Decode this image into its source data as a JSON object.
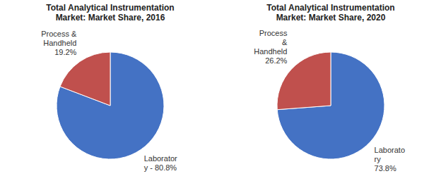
{
  "chart_data": [
    {
      "type": "pie",
      "title": "Total Analytical Instrumentation\nMarket: Market Share, 2016",
      "categories": [
        "Laborator\ny - 80.8%",
        "Process &\nHandheld\n19.2%"
      ],
      "values": [
        80.8,
        19.2
      ],
      "colors": [
        "#4472C4",
        "#C0504D"
      ]
    },
    {
      "type": "pie",
      "title": "Total Analytical Instrumentation\nMarket: Market Share, 2020",
      "categories": [
        "Laborato\nry\n73.8%",
        "Process\n&\nHandheld\n26.2%"
      ],
      "values": [
        73.8,
        26.2
      ],
      "colors": [
        "#4472C4",
        "#C0504D"
      ]
    }
  ]
}
